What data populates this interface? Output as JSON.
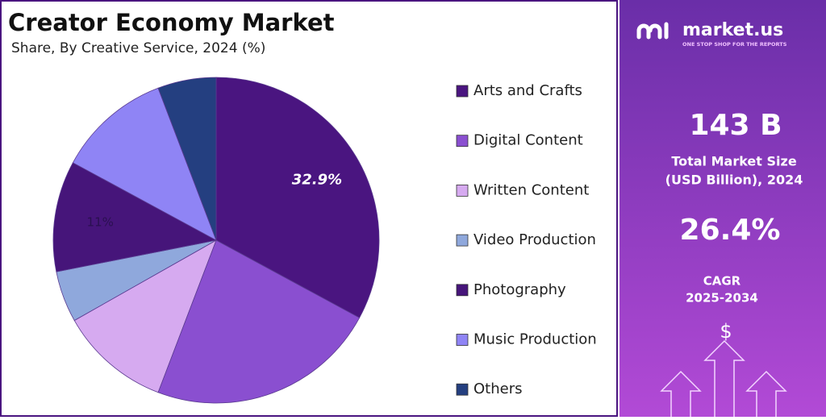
{
  "chart_data": {
    "type": "pie",
    "title": "Creator Economy Market",
    "subtitle": "Share, By Creative Service, 2024 (%)",
    "categories": [
      "Arts and Crafts",
      "Digital Content",
      "Written Content",
      "Video Production",
      "Photography",
      "Music Production",
      "Others"
    ],
    "values": [
      32.9,
      22.9,
      11,
      5.1,
      11,
      11.3,
      5.8
    ],
    "value_labels": [
      "32.9%",
      null,
      null,
      null,
      "11%",
      null,
      null
    ],
    "colors": [
      "#4a1580",
      "#8a4fd0",
      "#d6aaf0",
      "#8fa8dc",
      "#46157a",
      "#8f84f5",
      "#243f80"
    ],
    "legend": "right"
  },
  "side_panel": {
    "brand": "market.us",
    "tagline": "ONE STOP SHOP FOR THE REPORTS",
    "market_size": "143 B",
    "market_size_label_1": "Total Market Size",
    "market_size_label_2": "(USD Billion), 2024",
    "cagr": "26.4%",
    "cagr_label_1": "CAGR",
    "cagr_label_2": "2025-2034",
    "icon": "$"
  }
}
